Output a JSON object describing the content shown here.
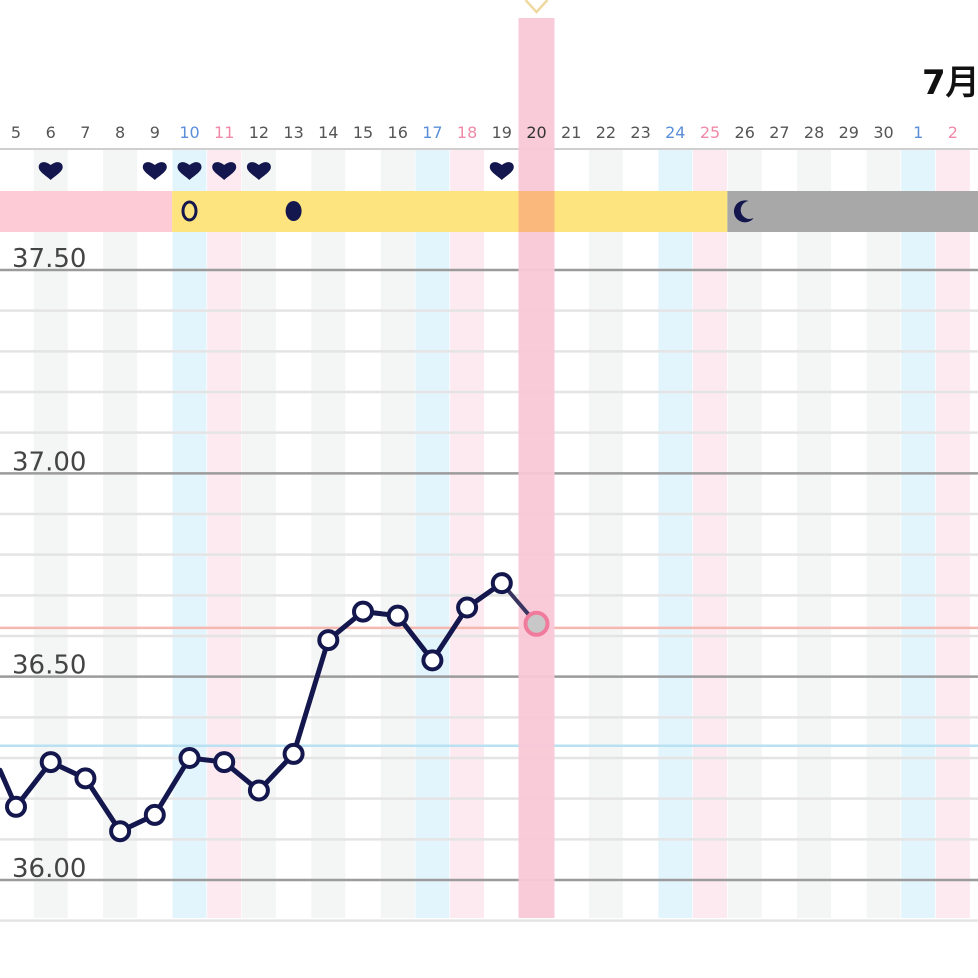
{
  "chart_data": {
    "type": "line",
    "month_label": "7月",
    "x_labels": [
      "5",
      "6",
      "7",
      "8",
      "9",
      "10",
      "11",
      "12",
      "13",
      "14",
      "15",
      "16",
      "17",
      "18",
      "19",
      "20",
      "21",
      "22",
      "23",
      "24",
      "25",
      "26",
      "27",
      "28",
      "29",
      "30",
      "1",
      "2"
    ],
    "label_colors": {
      "weekday": "#555555",
      "saturday": "#5a8fd8",
      "sunday": "#f08aa8",
      "today": "#333333"
    },
    "saturday_indices": [
      5,
      12,
      19,
      26
    ],
    "sunday_indices": [
      6,
      13,
      20,
      27
    ],
    "today_index": 15,
    "y_ticks": [
      "37.50",
      "37.00",
      "36.50",
      "36.00"
    ],
    "ylim": [
      35.93,
      37.55
    ],
    "series": [
      {
        "values": [
          36.18,
          36.29,
          36.25,
          36.12,
          36.16,
          36.3,
          36.29,
          36.22,
          36.31,
          36.59,
          36.66,
          36.65,
          36.54,
          36.67,
          36.73,
          36.63
        ],
        "color": "#13174d",
        "last_point_color": "#f07b9c"
      }
    ],
    "reference_lines": [
      {
        "value": 36.62,
        "color": "#f4b8b0"
      },
      {
        "value": 36.33,
        "color": "#b9e1f2"
      }
    ],
    "heart_day_indices": [
      1,
      4,
      5,
      6,
      7,
      14
    ],
    "phase_bar": [
      {
        "phase": "period",
        "start": 0,
        "end": 5,
        "color": "#fccbd5"
      },
      {
        "phase": "fertile",
        "start": 5,
        "end": 21,
        "color": "#fee47e"
      },
      {
        "phase": "luteal",
        "start": 21,
        "end": 28,
        "color": "#a8a8a8"
      }
    ],
    "phase_icons": [
      {
        "index": 5,
        "icon": "egg-outline-icon"
      },
      {
        "index": 8,
        "icon": "egg-filled-icon"
      },
      {
        "index": 21,
        "icon": "crescent-moon-icon"
      }
    ],
    "colors": {
      "saturday_col": "#e3f5fc",
      "sunday_col": "#fdeaf0",
      "alt_col": "#f4f6f5",
      "today_col": "#f9c8d7",
      "today_phase": "#fbb87c",
      "major_grid": "#9b9b9b",
      "minor_grid": "#e4e4e4",
      "heart": "#13174d",
      "moon": "#13174d",
      "today_marker": "#f0d9a0"
    }
  }
}
